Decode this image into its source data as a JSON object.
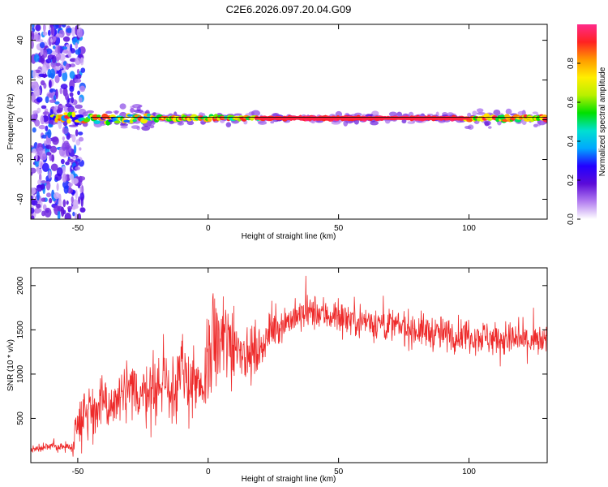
{
  "title": "C2E6.2026.097.20.04.G09",
  "chart_data": [
    {
      "type": "heatmap",
      "xlabel": "Height of straight line (km)",
      "ylabel": "Frequency (Hz)",
      "xlim": [
        -68,
        130
      ],
      "ylim": [
        -50,
        48
      ],
      "xticks": [
        -50,
        0,
        50,
        100
      ],
      "yticks": [
        -40,
        -20,
        0,
        20,
        40
      ],
      "ridge_frequency_hz": 0.8,
      "colorbar": {
        "label": "Normalized spectral amplitude",
        "ticks": [
          0.0,
          0.2,
          0.4,
          0.6,
          0.8
        ],
        "range": [
          0,
          1
        ],
        "colors": [
          "#ffffff",
          "#b27cf0",
          "#5b0bd8",
          "#2200ff",
          "#00a8ff",
          "#00e0d0",
          "#00e000",
          "#b8f000",
          "#ffee00",
          "#ff9a00",
          "#ff2222",
          "#ff2a8a"
        ]
      },
      "line_color": "#000000"
    },
    {
      "type": "line",
      "xlabel": "Height of straight line (km)",
      "ylabel": "SNR (10 * v/v)",
      "xlim": [
        -68,
        130
      ],
      "ylim": [
        0,
        2200
      ],
      "xticks": [
        -50,
        0,
        50,
        100
      ],
      "yticks": [
        500,
        1000,
        1500,
        2000
      ],
      "color": "#ee2a2a",
      "series": {
        "x": [
          -68,
          -60,
          -52,
          -50,
          -45,
          -40,
          -35,
          -30,
          -25,
          -20,
          -15,
          -10,
          -5,
          -2,
          0,
          5,
          10,
          15,
          20,
          25,
          30,
          35,
          40,
          50,
          60,
          70,
          80,
          90,
          100,
          110,
          120,
          130
        ],
        "y": [
          150,
          180,
          180,
          520,
          600,
          640,
          700,
          770,
          820,
          840,
          880,
          960,
          900,
          700,
          1250,
          1350,
          1400,
          1200,
          1300,
          1500,
          1600,
          1650,
          1700,
          1650,
          1600,
          1550,
          1500,
          1450,
          1450,
          1400,
          1380,
          1350
        ]
      }
    }
  ]
}
